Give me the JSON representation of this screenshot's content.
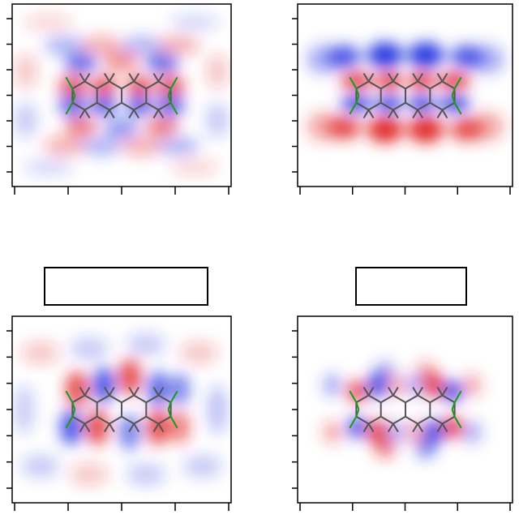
{
  "panels": [
    {
      "id": "top-left",
      "label": "",
      "yticks": 7,
      "xticks": 5,
      "orbital": "diffuse"
    },
    {
      "id": "top-right",
      "label": "",
      "yticks": 7,
      "xticks": 5,
      "orbital": "pi-stripes"
    },
    {
      "id": "bottom-left",
      "label": "",
      "yticks": 7,
      "xticks": 5,
      "orbital": "diffuse-nodal"
    },
    {
      "id": "bottom-right",
      "label": "",
      "yticks": 7,
      "xticks": 5,
      "orbital": "nodal"
    }
  ],
  "colors": {
    "positive": "#e02020",
    "negative": "#2030e0",
    "bond_carbon": "#555555",
    "bond_hydrogen": "#1a9a1a",
    "frame": "#000000"
  },
  "molecule": "tetracene"
}
